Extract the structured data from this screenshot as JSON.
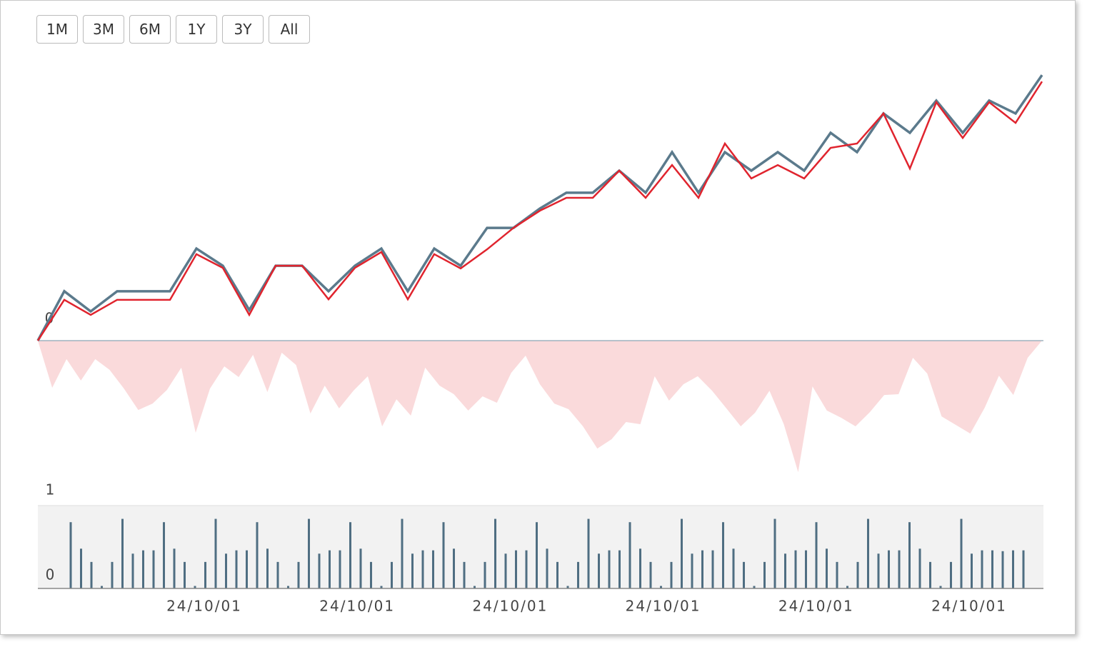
{
  "range_buttons": [
    "1M",
    "3M",
    "6M",
    "1Y",
    "3Y",
    "All"
  ],
  "chart_data": [
    {
      "type": "line",
      "ylim": [
        0,
        100
      ],
      "yticks": [
        0
      ],
      "series": [
        {
          "color": "#5b7a8c",
          "values": [
            0,
            18.4,
            10.9,
            18.4,
            18.4,
            18.4,
            34.3,
            27.9,
            11.4,
            27.9,
            27.9,
            18.4,
            27.9,
            34.3,
            18.4,
            34.3,
            27.9,
            42.0,
            42.0,
            49.2,
            55.1,
            55.1,
            63.3,
            55.1,
            70.2,
            55.1,
            70.2,
            63.3,
            70.2,
            63.3,
            77.4,
            70.2,
            84.6,
            77.4,
            89.4,
            77.4,
            89.4,
            84.6,
            98.9
          ]
        },
        {
          "color": "#e0242e",
          "values": [
            0,
            15.2,
            9.6,
            15.2,
            15.2,
            15.2,
            32.2,
            27.1,
            9.6,
            27.9,
            27.9,
            15.4,
            27.1,
            33.0,
            15.4,
            32.2,
            26.9,
            34.0,
            42.0,
            48.4,
            53.2,
            53.2,
            63.3,
            53.2,
            65.4,
            53.2,
            73.4,
            60.4,
            65.4,
            60.4,
            71.8,
            73.4,
            84.6,
            64.1,
            88.8,
            75.5,
            88.8,
            81.1,
            96.5
          ]
        }
      ]
    },
    {
      "type": "area",
      "color": "#fadadb",
      "ylim": [
        -60,
        0
      ],
      "values": [
        0,
        -17.6,
        -6.9,
        -14.9,
        -6.9,
        -10.9,
        -17.9,
        -25.9,
        -23.5,
        -18.4,
        -10.1,
        -34.4,
        -17.9,
        -9.6,
        -13.6,
        -5.3,
        -19.2,
        -4.5,
        -9.1,
        -27.2,
        -16.8,
        -25.3,
        -18.7,
        -13.3,
        -32.0,
        -21.9,
        -28.0,
        -10.1,
        -16.8,
        -20.0,
        -26.1,
        -20.8,
        -23.2,
        -12.0,
        -5.6,
        -16.3,
        -23.5,
        -25.6,
        -32.0,
        -40.3,
        -36.8,
        -30.4,
        -31.2,
        -13.3,
        -22.4,
        -16.3,
        -13.3,
        -18.7,
        -25.3,
        -32.0,
        -26.9,
        -18.7,
        -31.2,
        -49.1,
        -17.1,
        -26.1,
        -28.8,
        -32.0,
        -26.7,
        -20.3,
        -20.0,
        -6.4,
        -12.3,
        -28.3,
        -31.5,
        -34.7,
        -25.1,
        -13.1,
        -20.3,
        -6.4,
        0
      ]
    },
    {
      "type": "bar",
      "color": "#4f6e82",
      "ylim": [
        0,
        1
      ],
      "yticks": [
        0,
        1
      ],
      "xtick_labels": [
        "24/10/01",
        "24/10/01",
        "24/10/01",
        "24/10/01",
        "24/10/01",
        "24/10/01"
      ],
      "values": [
        0.8,
        0.48,
        0.32,
        0.03,
        0.32,
        0.84,
        0.42,
        0.46,
        0.46,
        0.8,
        0.48,
        0.32,
        0.03,
        0.32,
        0.84,
        0.42,
        0.46,
        0.46,
        0.8,
        0.48,
        0.32,
        0.03,
        0.32,
        0.84,
        0.42,
        0.46,
        0.46,
        0.8,
        0.48,
        0.32,
        0.03,
        0.32,
        0.84,
        0.42,
        0.46,
        0.46,
        0.8,
        0.48,
        0.32,
        0.03,
        0.32,
        0.84,
        0.42,
        0.46,
        0.46,
        0.8,
        0.48,
        0.32,
        0.03,
        0.32,
        0.84,
        0.42,
        0.46,
        0.46,
        0.8,
        0.48,
        0.32,
        0.03,
        0.32,
        0.84,
        0.42,
        0.46,
        0.46,
        0.8,
        0.48,
        0.32,
        0.03,
        0.32,
        0.84,
        0.42,
        0.46,
        0.46,
        0.8,
        0.48,
        0.32,
        0.03,
        0.32,
        0.84,
        0.42,
        0.46,
        0.46,
        0.8,
        0.48,
        0.32,
        0.03,
        0.32,
        0.84,
        0.42,
        0.46,
        0.46,
        0.45,
        0.46,
        0.46
      ]
    }
  ]
}
